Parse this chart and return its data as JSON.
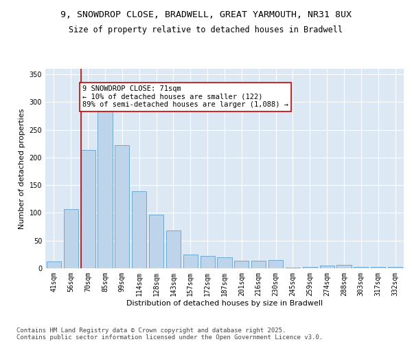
{
  "title": "9, SNOWDROP CLOSE, BRADWELL, GREAT YARMOUTH, NR31 8UX",
  "subtitle": "Size of property relative to detached houses in Bradwell",
  "xlabel": "Distribution of detached houses by size in Bradwell",
  "ylabel": "Number of detached properties",
  "categories": [
    "41sqm",
    "56sqm",
    "70sqm",
    "85sqm",
    "99sqm",
    "114sqm",
    "128sqm",
    "143sqm",
    "157sqm",
    "172sqm",
    "187sqm",
    "201sqm",
    "216sqm",
    "230sqm",
    "245sqm",
    "259sqm",
    "274sqm",
    "288sqm",
    "303sqm",
    "317sqm",
    "332sqm"
  ],
  "values": [
    13,
    107,
    213,
    283,
    222,
    139,
    97,
    68,
    25,
    22,
    20,
    14,
    14,
    15,
    1,
    3,
    5,
    6,
    3,
    2,
    3
  ],
  "bar_color": "#bdd4ea",
  "bar_edge_color": "#6fa8d0",
  "vline_color": "#cc0000",
  "annotation_text": "9 SNOWDROP CLOSE: 71sqm\n← 10% of detached houses are smaller (122)\n89% of semi-detached houses are larger (1,088) →",
  "annotation_box_color": "#ffffff",
  "annotation_box_edge": "#cc0000",
  "ylim": [
    0,
    360
  ],
  "yticks": [
    0,
    50,
    100,
    150,
    200,
    250,
    300,
    350
  ],
  "background_color": "#dce9f5",
  "grid_color": "#ffffff",
  "footnote": "Contains HM Land Registry data © Crown copyright and database right 2025.\nContains public sector information licensed under the Open Government Licence v3.0.",
  "title_fontsize": 9.5,
  "subtitle_fontsize": 8.5,
  "axis_label_fontsize": 8,
  "tick_fontsize": 7,
  "annotation_fontsize": 7.5,
  "footnote_fontsize": 6.5
}
